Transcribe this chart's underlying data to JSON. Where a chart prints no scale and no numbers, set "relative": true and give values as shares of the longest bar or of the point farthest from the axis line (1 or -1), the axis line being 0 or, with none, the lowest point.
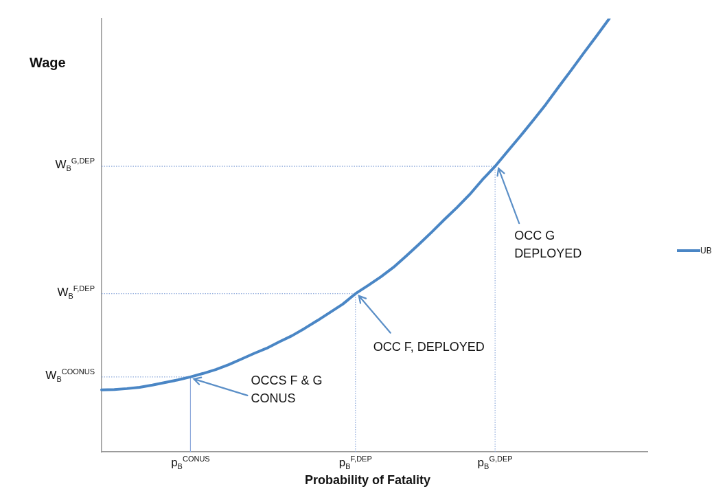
{
  "chart_data": {
    "type": "line",
    "relative": true,
    "ylabel": "Wage",
    "xlabel": "Probability of Fatality",
    "categories": [
      null,
      null,
      null,
      null,
      null,
      null,
      null,
      "p$_{B}$$^{CONUS}$",
      null,
      null,
      null,
      null,
      null,
      null,
      null,
      null,
      null,
      null,
      null,
      null,
      "p$_{B}$$^{F,DEP}$",
      null,
      null,
      null,
      null,
      null,
      null,
      null,
      null,
      null,
      null,
      "p$_{B}$$^{G,DEP}$",
      null,
      null,
      null,
      null,
      null,
      null,
      null,
      null,
      null,
      null,
      null,
      null
    ],
    "series": [
      {
        "name": "UB",
        "color": "#4a86c5",
        "values": [
          0.143,
          0.144,
          0.146,
          0.149,
          0.154,
          0.16,
          0.166,
          0.173,
          0.181,
          0.19,
          0.201,
          0.214,
          0.227,
          0.239,
          0.254,
          0.268,
          0.285,
          0.303,
          0.322,
          0.341,
          0.365,
          0.384,
          0.404,
          0.426,
          0.452,
          0.479,
          0.507,
          0.536,
          0.564,
          0.594,
          0.628,
          0.659,
          0.694,
          0.729,
          0.765,
          0.802,
          0.842,
          0.881,
          0.921,
          0.96,
          1.0,
          null,
          null,
          null
        ]
      }
    ],
    "ref_lines": [
      {
        "axis": "y",
        "value": 0.173,
        "label": "W$_{B}$$^{COONUS}$",
        "color": "#8eaadb",
        "line_style": "dotted"
      },
      {
        "axis": "y",
        "value": 0.365,
        "label": "W$_{B}$$^{F,DEP}$",
        "color": "#8eaadb",
        "line_style": "dotted"
      },
      {
        "axis": "y",
        "value": 0.659,
        "label": "W$_{B}$$^{G,DEP}$",
        "color": "#8eaadb",
        "line_style": "dotted"
      },
      {
        "axis": "x",
        "value": "p$_{B}$$^{CONUS}$",
        "color": "#8eaadb",
        "line_style": "solid"
      },
      {
        "axis": "x",
        "value": "p$_{B}$$^{F,DEP}$",
        "color": "#8eaadb",
        "line_style": "dotted"
      },
      {
        "axis": "x",
        "value": "p$_{B}$$^{G,DEP}$",
        "color": "#8eaadb",
        "line_style": "dotted"
      }
    ],
    "annotations": [
      {
        "text": "OCCS F & G\nCONUS",
        "x": "p$_{B}$$^{CONUS}$",
        "y": 0.173
      },
      {
        "text": "OCC F, DEPLOYED",
        "x": "p$_{B}$$^{F,DEP}$",
        "y": 0.365
      },
      {
        "text": "OCC G\nDEPLOYED",
        "x": "p$_{B}$$^{G,DEP}$",
        "y": 0.659
      }
    ],
    "legend": "right",
    "marker": "none",
    "line_style": "solid",
    "grid": false
  }
}
